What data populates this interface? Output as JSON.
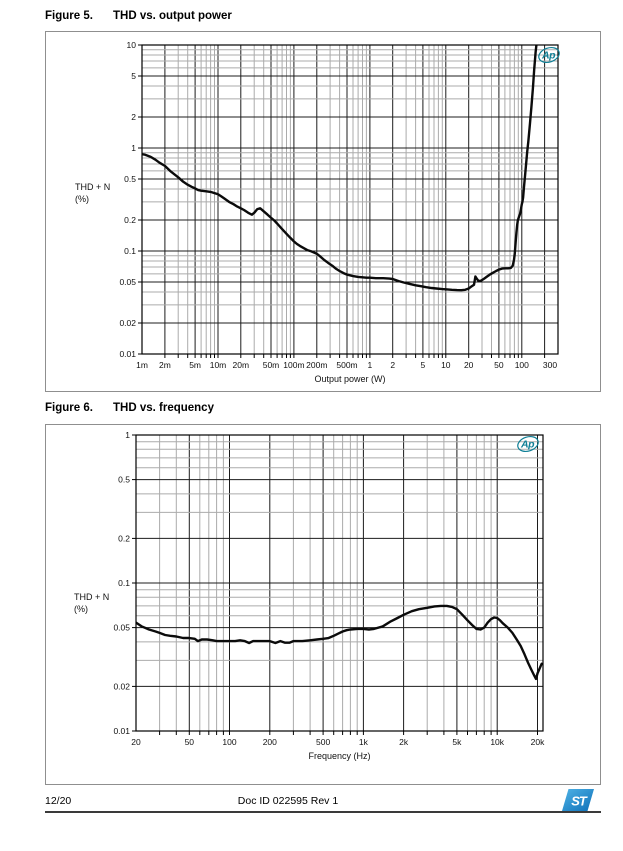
{
  "figures": [
    {
      "label": "Figure 5.",
      "title": "THD vs. output power"
    },
    {
      "label": "Figure 6.",
      "title": "THD vs. frequency"
    }
  ],
  "footer": {
    "page": "12/20",
    "doc": "Doc ID 022595 Rev 1",
    "logo": "ST"
  },
  "colors": {
    "grid_major": "#1c1c1c",
    "grid_minor": "#ababab",
    "frame": "#000000",
    "curve": "#0b0b0b",
    "watermark_teal": "#0f7f96",
    "st_blue_light": "#4fb3e6",
    "st_blue_dark": "#0d6fb8"
  },
  "chart_data": [
    {
      "type": "line",
      "title": "THD vs. output power",
      "xlabel": "Output power (W)",
      "ylabel_lines": [
        "THD + N",
        "(%)"
      ],
      "x_scale": "log",
      "y_scale": "log",
      "xlim": [
        0.001,
        300
      ],
      "ylim": [
        0.01,
        10
      ],
      "grid": "on",
      "watermark": "Ap",
      "x_ticks": [
        {
          "v": 0.001,
          "label": "1m"
        },
        {
          "v": 0.002,
          "label": "2m"
        },
        {
          "v": 0.005,
          "label": "5m"
        },
        {
          "v": 0.01,
          "label": "10m"
        },
        {
          "v": 0.02,
          "label": "20m"
        },
        {
          "v": 0.05,
          "label": "50m"
        },
        {
          "v": 0.1,
          "label": "100m"
        },
        {
          "v": 0.2,
          "label": "200m"
        },
        {
          "v": 0.5,
          "label": "500m"
        },
        {
          "v": 1,
          "label": "1"
        },
        {
          "v": 2,
          "label": "2"
        },
        {
          "v": 5,
          "label": "5"
        },
        {
          "v": 10,
          "label": "10"
        },
        {
          "v": 20,
          "label": "20"
        },
        {
          "v": 50,
          "label": "50"
        },
        {
          "v": 100,
          "label": "100"
        },
        {
          "v": 300,
          "label": "300",
          "dx": -8
        }
      ],
      "y_ticks": [
        {
          "v": 10,
          "label": "10"
        },
        {
          "v": 5,
          "label": "5"
        },
        {
          "v": 2,
          "label": "2"
        },
        {
          "v": 1,
          "label": "1"
        },
        {
          "v": 0.5,
          "label": "0.5"
        },
        {
          "v": 0.2,
          "label": "0.2"
        },
        {
          "v": 0.1,
          "label": "0.1"
        },
        {
          "v": 0.05,
          "label": "0.05"
        },
        {
          "v": 0.02,
          "label": "0.02"
        },
        {
          "v": 0.01,
          "label": "0.01"
        }
      ],
      "points": [
        [
          0.001,
          0.87
        ],
        [
          0.0011,
          0.86
        ],
        [
          0.0013,
          0.82
        ],
        [
          0.0015,
          0.77
        ],
        [
          0.0017,
          0.72
        ],
        [
          0.002,
          0.67
        ],
        [
          0.0024,
          0.59
        ],
        [
          0.003,
          0.52
        ],
        [
          0.0035,
          0.47
        ],
        [
          0.004,
          0.44
        ],
        [
          0.0045,
          0.42
        ],
        [
          0.005,
          0.405
        ],
        [
          0.0055,
          0.39
        ],
        [
          0.006,
          0.385
        ],
        [
          0.007,
          0.38
        ],
        [
          0.008,
          0.375
        ],
        [
          0.009,
          0.365
        ],
        [
          0.01,
          0.355
        ],
        [
          0.011,
          0.34
        ],
        [
          0.012,
          0.325
        ],
        [
          0.014,
          0.3
        ],
        [
          0.016,
          0.285
        ],
        [
          0.018,
          0.27
        ],
        [
          0.02,
          0.26
        ],
        [
          0.022,
          0.25
        ],
        [
          0.025,
          0.235
        ],
        [
          0.028,
          0.225
        ],
        [
          0.03,
          0.235
        ],
        [
          0.033,
          0.255
        ],
        [
          0.036,
          0.26
        ],
        [
          0.04,
          0.243
        ],
        [
          0.045,
          0.225
        ],
        [
          0.05,
          0.21
        ],
        [
          0.055,
          0.198
        ],
        [
          0.06,
          0.185
        ],
        [
          0.07,
          0.163
        ],
        [
          0.08,
          0.147
        ],
        [
          0.09,
          0.134
        ],
        [
          0.1,
          0.124
        ],
        [
          0.11,
          0.117
        ],
        [
          0.12,
          0.112
        ],
        [
          0.14,
          0.105
        ],
        [
          0.15,
          0.102
        ],
        [
          0.17,
          0.099
        ],
        [
          0.2,
          0.094
        ],
        [
          0.22,
          0.089
        ],
        [
          0.25,
          0.082
        ],
        [
          0.28,
          0.077
        ],
        [
          0.32,
          0.072
        ],
        [
          0.36,
          0.067
        ],
        [
          0.4,
          0.064
        ],
        [
          0.45,
          0.061
        ],
        [
          0.5,
          0.059
        ],
        [
          0.6,
          0.057
        ],
        [
          0.7,
          0.056
        ],
        [
          0.8,
          0.0555
        ],
        [
          0.9,
          0.055
        ],
        [
          1,
          0.055
        ],
        [
          1.2,
          0.0545
        ],
        [
          1.5,
          0.0545
        ],
        [
          1.8,
          0.054
        ],
        [
          2,
          0.0535
        ],
        [
          2.4,
          0.051
        ],
        [
          2.8,
          0.0495
        ],
        [
          3.3,
          0.048
        ],
        [
          4,
          0.0465
        ],
        [
          4.7,
          0.0455
        ],
        [
          5.5,
          0.0445
        ],
        [
          6.5,
          0.0437
        ],
        [
          7.5,
          0.0432
        ],
        [
          9,
          0.0427
        ],
        [
          10,
          0.0425
        ],
        [
          12,
          0.042
        ],
        [
          14,
          0.0417
        ],
        [
          16,
          0.0416
        ],
        [
          18,
          0.042
        ],
        [
          20,
          0.0432
        ],
        [
          22,
          0.0455
        ],
        [
          23.5,
          0.047
        ],
        [
          24.5,
          0.0565
        ],
        [
          25.5,
          0.054
        ],
        [
          27,
          0.051
        ],
        [
          29,
          0.0515
        ],
        [
          32,
          0.054
        ],
        [
          35,
          0.0565
        ],
        [
          38,
          0.059
        ],
        [
          42,
          0.0615
        ],
        [
          46,
          0.064
        ],
        [
          50,
          0.066
        ],
        [
          55,
          0.0675
        ],
        [
          60,
          0.068
        ],
        [
          66,
          0.068
        ],
        [
          72,
          0.0685
        ],
        [
          76,
          0.072
        ],
        [
          79,
          0.082
        ],
        [
          81,
          0.095
        ],
        [
          83,
          0.12
        ],
        [
          85,
          0.15
        ],
        [
          87,
          0.18
        ],
        [
          89,
          0.2
        ],
        [
          92,
          0.215
        ],
        [
          95,
          0.23
        ],
        [
          98,
          0.26
        ],
        [
          100,
          0.285
        ],
        [
          102,
          0.3
        ],
        [
          104,
          0.33
        ],
        [
          107,
          0.42
        ],
        [
          110,
          0.52
        ],
        [
          114,
          0.7
        ],
        [
          118,
          0.92
        ],
        [
          122,
          1.15
        ],
        [
          128,
          1.7
        ],
        [
          134,
          2.5
        ],
        [
          140,
          3.8
        ],
        [
          146,
          5.8
        ],
        [
          152,
          8.5
        ],
        [
          156,
          10
        ],
        [
          158,
          11
        ]
      ]
    },
    {
      "type": "line",
      "title": "THD vs. frequency",
      "xlabel": "Frequency (Hz)",
      "ylabel_lines": [
        "THD + N",
        "(%)"
      ],
      "x_scale": "log",
      "y_scale": "log",
      "xlim": [
        20,
        22000
      ],
      "ylim": [
        0.01,
        1
      ],
      "grid": "on",
      "watermark": "Ap",
      "x_ticks": [
        {
          "v": 20,
          "label": "20"
        },
        {
          "v": 50,
          "label": "50"
        },
        {
          "v": 100,
          "label": "100"
        },
        {
          "v": 200,
          "label": "200"
        },
        {
          "v": 500,
          "label": "500"
        },
        {
          "v": 1000,
          "label": "1k"
        },
        {
          "v": 2000,
          "label": "2k"
        },
        {
          "v": 5000,
          "label": "5k"
        },
        {
          "v": 10000,
          "label": "10k"
        },
        {
          "v": 20000,
          "label": "20k"
        }
      ],
      "y_ticks": [
        {
          "v": 1,
          "label": "1"
        },
        {
          "v": 0.5,
          "label": "0.5"
        },
        {
          "v": 0.2,
          "label": "0.2"
        },
        {
          "v": 0.1,
          "label": "0.1"
        },
        {
          "v": 0.05,
          "label": "0.05"
        },
        {
          "v": 0.02,
          "label": "0.02"
        },
        {
          "v": 0.01,
          "label": "0.01"
        }
      ],
      "points": [
        [
          20,
          0.054
        ],
        [
          22,
          0.051
        ],
        [
          25,
          0.0485
        ],
        [
          28,
          0.047
        ],
        [
          30,
          0.046
        ],
        [
          33,
          0.0445
        ],
        [
          36,
          0.044
        ],
        [
          40,
          0.0435
        ],
        [
          45,
          0.0425
        ],
        [
          50,
          0.0425
        ],
        [
          55,
          0.042
        ],
        [
          58,
          0.0405
        ],
        [
          62,
          0.0415
        ],
        [
          68,
          0.0415
        ],
        [
          75,
          0.041
        ],
        [
          80,
          0.0405
        ],
        [
          90,
          0.0405
        ],
        [
          100,
          0.0405
        ],
        [
          110,
          0.0405
        ],
        [
          120,
          0.041
        ],
        [
          130,
          0.0405
        ],
        [
          140,
          0.0393
        ],
        [
          150,
          0.0405
        ],
        [
          170,
          0.0405
        ],
        [
          200,
          0.0405
        ],
        [
          220,
          0.0393
        ],
        [
          240,
          0.0405
        ],
        [
          260,
          0.0395
        ],
        [
          280,
          0.0395
        ],
        [
          300,
          0.0405
        ],
        [
          350,
          0.0405
        ],
        [
          400,
          0.041
        ],
        [
          450,
          0.0415
        ],
        [
          500,
          0.042
        ],
        [
          550,
          0.0425
        ],
        [
          600,
          0.044
        ],
        [
          650,
          0.0455
        ],
        [
          700,
          0.047
        ],
        [
          750,
          0.048
        ],
        [
          800,
          0.0485
        ],
        [
          900,
          0.049
        ],
        [
          1000,
          0.049
        ],
        [
          1100,
          0.0485
        ],
        [
          1200,
          0.049
        ],
        [
          1400,
          0.051
        ],
        [
          1600,
          0.055
        ],
        [
          1800,
          0.058
        ],
        [
          2000,
          0.061
        ],
        [
          2300,
          0.0645
        ],
        [
          2600,
          0.0665
        ],
        [
          3000,
          0.068
        ],
        [
          3400,
          0.0695
        ],
        [
          3800,
          0.07
        ],
        [
          4200,
          0.07
        ],
        [
          4600,
          0.069
        ],
        [
          5000,
          0.0665
        ],
        [
          5500,
          0.061
        ],
        [
          6000,
          0.056
        ],
        [
          6500,
          0.052
        ],
        [
          7000,
          0.049
        ],
        [
          7500,
          0.0485
        ],
        [
          8000,
          0.05
        ],
        [
          8500,
          0.054
        ],
        [
          9000,
          0.057
        ],
        [
          9500,
          0.0585
        ],
        [
          10000,
          0.058
        ],
        [
          10500,
          0.056
        ],
        [
          11000,
          0.0535
        ],
        [
          12000,
          0.05
        ],
        [
          13000,
          0.046
        ],
        [
          14000,
          0.0415
        ],
        [
          15000,
          0.0375
        ],
        [
          16000,
          0.033
        ],
        [
          17000,
          0.029
        ],
        [
          18000,
          0.026
        ],
        [
          19000,
          0.0235
        ],
        [
          19500,
          0.0225
        ],
        [
          20000,
          0.0245
        ],
        [
          21500,
          0.0285
        ]
      ]
    }
  ]
}
